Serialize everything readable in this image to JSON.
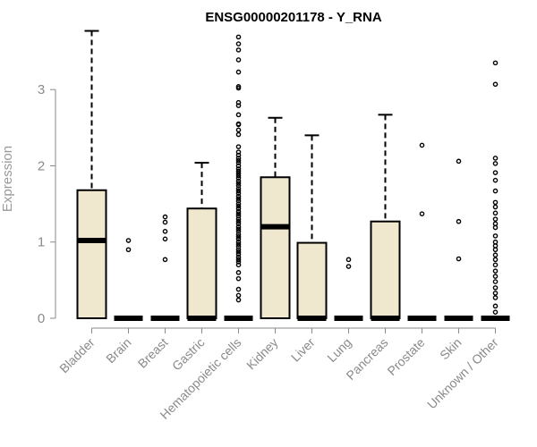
{
  "chart_data": {
    "type": "boxplot",
    "title": "ENSG00000201178 - Y_RNA",
    "xlabel": "",
    "ylabel": "Expression",
    "ylim": [
      0,
      3.8
    ],
    "yticks": [
      0,
      1,
      2,
      3
    ],
    "box_fill": "#efe8cf",
    "categories": [
      "Bladder",
      "Brain",
      "Breast",
      "Gastric",
      "Hematopoietic cells",
      "Kidney",
      "Liver",
      "Lung",
      "Pancreas",
      "Prostate",
      "Skin",
      "Unknown / Other"
    ],
    "boxes": [
      {
        "category": "Bladder",
        "q1": 0,
        "median": 1.02,
        "q3": 1.68,
        "whisker_low": 0,
        "whisker_high": 3.77,
        "outliers": []
      },
      {
        "category": "Brain",
        "q1": 0,
        "median": 0,
        "q3": 0,
        "whisker_low": 0,
        "whisker_high": 0,
        "outliers": [
          1.02,
          0.9
        ]
      },
      {
        "category": "Breast",
        "q1": 0,
        "median": 0,
        "q3": 0,
        "whisker_low": 0,
        "whisker_high": 0,
        "outliers": [
          1.33,
          1.26,
          1.14,
          1.04,
          0.77
        ]
      },
      {
        "category": "Gastric",
        "q1": 0,
        "median": 0,
        "q3": 1.44,
        "whisker_low": 0,
        "whisker_high": 2.04,
        "outliers": []
      },
      {
        "category": "Hematopoietic cells",
        "q1": 0,
        "median": 0,
        "q3": 0,
        "whisker_low": 0,
        "whisker_high": 0,
        "outliers": [
          3.69,
          3.6,
          3.52,
          3.39,
          3.23,
          3.04,
          3.02,
          2.83,
          2.79,
          2.67,
          2.55,
          2.54,
          2.47,
          2.41,
          2.25,
          2.18,
          2.14,
          2.1,
          2.07,
          2.04,
          2.0,
          1.96,
          1.93,
          1.9,
          1.87,
          1.84,
          1.8,
          1.77,
          1.74,
          1.7,
          1.67,
          1.64,
          1.6,
          1.57,
          1.54,
          1.5,
          1.47,
          1.44,
          1.4,
          1.37,
          1.34,
          1.3,
          1.27,
          1.24,
          1.2,
          1.17,
          1.14,
          1.1,
          1.07,
          1.04,
          1.0,
          0.97,
          0.94,
          0.9,
          0.87,
          0.84,
          0.8,
          0.77,
          0.74,
          0.7,
          0.6,
          0.52,
          0.38,
          0.3,
          0.24
        ]
      },
      {
        "category": "Kidney",
        "q1": 0,
        "median": 1.2,
        "q3": 1.85,
        "whisker_low": 0,
        "whisker_high": 2.63,
        "outliers": []
      },
      {
        "category": "Liver",
        "q1": 0,
        "median": 0,
        "q3": 0.99,
        "whisker_low": 0,
        "whisker_high": 2.4,
        "outliers": []
      },
      {
        "category": "Lung",
        "q1": 0,
        "median": 0,
        "q3": 0,
        "whisker_low": 0,
        "whisker_high": 0,
        "outliers": [
          0.77,
          0.68
        ]
      },
      {
        "category": "Pancreas",
        "q1": 0,
        "median": 0,
        "q3": 1.27,
        "whisker_low": 0,
        "whisker_high": 2.67,
        "outliers": []
      },
      {
        "category": "Prostate",
        "q1": 0,
        "median": 0,
        "q3": 0,
        "whisker_low": 0,
        "whisker_high": 0,
        "outliers": [
          2.27,
          1.37
        ]
      },
      {
        "category": "Skin",
        "q1": 0,
        "median": 0,
        "q3": 0,
        "whisker_low": 0,
        "whisker_high": 0,
        "outliers": [
          2.06,
          1.27,
          0.78
        ]
      },
      {
        "category": "Unknown / Other",
        "q1": 0,
        "median": 0,
        "q3": 0,
        "whisker_low": 0,
        "whisker_high": 0,
        "outliers": [
          3.35,
          3.07,
          2.1,
          2.03,
          1.91,
          1.81,
          1.67,
          1.52,
          1.46,
          1.38,
          1.3,
          1.24,
          1.19,
          1.08,
          1.0,
          0.95,
          0.9,
          0.83,
          0.77,
          0.7,
          0.62,
          0.55,
          0.48,
          0.4,
          0.33,
          0.27,
          0.16,
          0.08
        ]
      }
    ]
  }
}
